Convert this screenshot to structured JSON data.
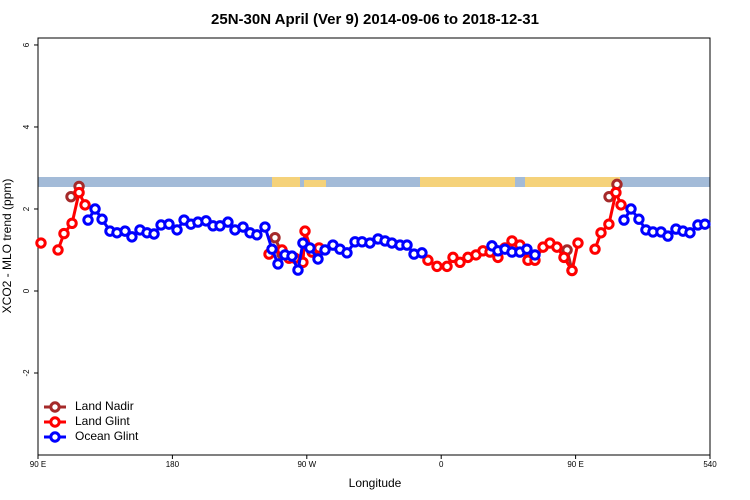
{
  "chart_data": {
    "type": "line",
    "title": "25N-30N April (Ver 9)   2014-09-06 to 2018-12-31",
    "x_label": "Longitude",
    "y_label": "XCO2 - MLO trend (ppm)",
    "xlim": [
      90,
      540
    ],
    "ylim": [
      -4,
      6.17
    ],
    "xticks": [
      {
        "value": 90,
        "label": "90 E"
      },
      180,
      {
        "value": 270,
        "label": "90 W"
      },
      {
        "value": 360,
        "label": "0"
      },
      {
        "value": 450,
        "label": "90 E"
      },
      540
    ],
    "yticks": [
      -2,
      0,
      2,
      4,
      6
    ],
    "legend": "bottom-left",
    "series": [
      {
        "name": "Land Nadir",
        "color": "#a52a2a",
        "x": [
          112.1,
          117.5,
          null,
          248.7,
          253.4,
          null,
          444.3,
          447.6,
          null,
          472.4,
          477.7
        ],
        "values": [
          2.3,
          2.55,
          null,
          1.3,
          0.9,
          null,
          1.0,
          0.5,
          null,
          2.3,
          2.6
        ]
      },
      {
        "name": "Land Glint",
        "color": "#ff0000",
        "x": [
          92,
          null,
          103.4,
          107.4,
          112.8,
          117.5,
          121.5,
          null,
          244.7,
          253.4,
          258.1,
          262.1,
          267.4,
          268.8,
          273.5,
          278.2,
          null,
          351.1,
          357.2,
          363.9,
          367.9,
          372.6,
          377.9,
          383.3,
          388,
          392.7,
          398,
          402.7,
          407.4,
          412.7,
          418.1,
          422.8,
          428.2,
          432.8,
          437.5,
          442.2,
          447.6,
          451.6,
          null,
          463,
          467,
          472.3,
          477,
          480.4
        ],
        "values": [
          1.17,
          null,
          1.0,
          1.4,
          1.65,
          2.4,
          2.1,
          null,
          0.9,
          1.0,
          0.8,
          0.8,
          0.7,
          1.46,
          0.95,
          1.05,
          null,
          0.75,
          0.6,
          0.6,
          0.82,
          0.7,
          0.82,
          0.88,
          0.98,
          0.95,
          0.82,
          1.05,
          1.22,
          1.12,
          0.75,
          0.75,
          1.07,
          1.17,
          1.07,
          0.82,
          0.5,
          1.17,
          null,
          1.02,
          1.42,
          1.63,
          2.4,
          2.1
        ]
      },
      {
        "name": "Ocean Glint",
        "color": "#0000ff",
        "x": [
          123.5,
          128.2,
          132.9,
          138.2,
          142.9,
          148.3,
          152.9,
          158.3,
          163,
          167.7,
          172.4,
          177.7,
          183.1,
          187.8,
          192.4,
          197.1,
          202.5,
          207.2,
          211.9,
          217.2,
          221.9,
          227.3,
          232,
          236.6,
          242,
          246.7,
          250.7,
          255.4,
          260.1,
          264.1,
          267.4,
          272.1,
          277.5,
          282.2,
          287.5,
          292.2,
          296.9,
          302.3,
          307,
          312.3,
          317.7,
          322.4,
          327,
          332.4,
          337.1,
          341.8,
          347.1,
          null,
          394,
          398,
          402.7,
          407.4,
          412.7,
          417.4,
          422.8,
          null,
          482.4,
          487.1,
          492.4,
          497.1,
          501.8,
          507.2,
          511.8,
          517.2,
          521.9,
          526.6,
          531.9,
          536.6
        ],
        "values": [
          1.73,
          2.0,
          1.75,
          1.46,
          1.42,
          1.46,
          1.32,
          1.49,
          1.42,
          1.39,
          1.61,
          1.63,
          1.49,
          1.73,
          1.63,
          1.68,
          1.71,
          1.59,
          1.59,
          1.68,
          1.49,
          1.56,
          1.42,
          1.37,
          1.56,
          1.02,
          0.66,
          0.88,
          0.85,
          0.51,
          1.17,
          1.05,
          0.78,
          1.0,
          1.12,
          1.02,
          0.93,
          1.2,
          1.2,
          1.17,
          1.27,
          1.22,
          1.17,
          1.12,
          1.12,
          0.9,
          0.93,
          null,
          1.1,
          0.98,
          1.02,
          0.95,
          0.95,
          1.02,
          0.88,
          null,
          1.73,
          2.0,
          1.75,
          1.49,
          1.44,
          1.44,
          1.34,
          1.51,
          1.46,
          1.42,
          1.61,
          1.63
        ]
      }
    ]
  }
}
